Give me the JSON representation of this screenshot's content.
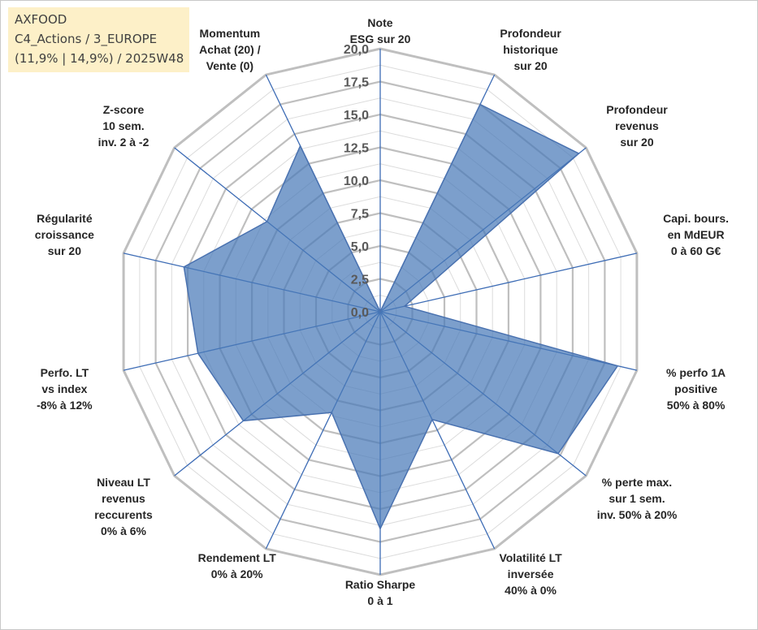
{
  "info_box": {
    "name": "AXFOOD",
    "category": "C4_Actions / 3_EUROPE",
    "detail": "(11,9% | 14,9%) / 2025W48"
  },
  "colors": {
    "fill": "#4a7ab8",
    "stroke": "#4a72b0",
    "grid": "#bfbfbf",
    "grid_minor": "#dcdcdc",
    "spoke": "#3d6cb5",
    "info_bg": "#fdf0c8"
  },
  "chart_data": {
    "type": "radar",
    "title": "",
    "rmin": 0,
    "rmax": 20,
    "tick_labels": [
      "0,0",
      "2,5",
      "5,0",
      "7,5",
      "10,0",
      "12,5",
      "15,0",
      "17,5",
      "20,0"
    ],
    "ticks": [
      0,
      2.5,
      5,
      7.5,
      10,
      12.5,
      15,
      17.5,
      20
    ],
    "axes": [
      {
        "lines": [
          "Note",
          "ESG sur 20"
        ]
      },
      {
        "lines": [
          "Profondeur",
          "historique",
          "sur 20"
        ]
      },
      {
        "lines": [
          "Profondeur",
          "revenus",
          "sur 20"
        ]
      },
      {
        "lines": [
          "Capi. bours.",
          "en MdEUR",
          "0 à 60 G€"
        ]
      },
      {
        "lines": [
          "% perfo 1A",
          "positive",
          "50% à 80%"
        ]
      },
      {
        "lines": [
          "% perte max.",
          "sur 1 sem.",
          "inv. 50% à 20%"
        ]
      },
      {
        "lines": [
          "Volatilité LT",
          "inversée",
          "40% à 0%"
        ]
      },
      {
        "lines": [
          "Ratio Sharpe",
          "0 à 1"
        ]
      },
      {
        "lines": [
          "Rendement LT",
          "0% à 20%"
        ]
      },
      {
        "lines": [
          "Niveau LT",
          "revenus",
          "reccurents",
          "0% à 6%"
        ]
      },
      {
        "lines": [
          "Perfo. LT",
          "vs index",
          "-8% à 12%"
        ]
      },
      {
        "lines": [
          "Régularité",
          "croissance",
          "sur 20"
        ]
      },
      {
        "lines": [
          "Z-score",
          "10 sem.",
          "inv. 2 à -2"
        ]
      },
      {
        "lines": [
          "Momentum",
          "Achat (20) /",
          "Vente (0)"
        ]
      }
    ],
    "series": [
      {
        "name": "AXFOOD",
        "values": [
          0,
          17.5,
          19.3,
          1.9,
          18.5,
          17.3,
          9.1,
          16.5,
          8.5,
          13.3,
          14.2,
          15.3,
          11.0,
          14.0
        ]
      }
    ]
  }
}
